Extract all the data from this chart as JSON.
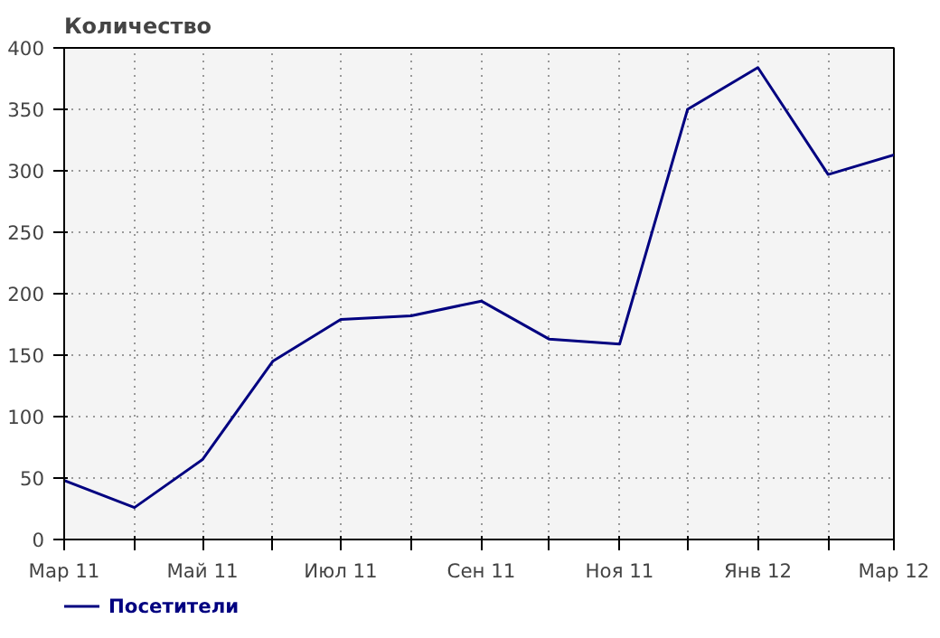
{
  "chart_data": {
    "type": "line",
    "title": "Количество",
    "x": [
      "2011-03",
      "2011-04",
      "2011-05",
      "2011-06",
      "2011-07",
      "2011-08",
      "2011-09",
      "2011-10",
      "2011-11",
      "2011-12",
      "2012-01",
      "2012-02",
      "2012-03"
    ],
    "series": [
      {
        "name": "Посетители",
        "color": "#000080",
        "values": [
          48,
          26,
          65,
          145,
          179,
          182,
          194,
          163,
          159,
          350,
          384,
          297,
          313
        ]
      }
    ],
    "xlim": [
      "2011-03",
      "2012-03"
    ],
    "xticks": [
      {
        "value": "2011-03",
        "label": "Мар 11"
      },
      {
        "value": "2011-04",
        "label": null
      },
      {
        "value": "2011-05",
        "label": "Май 11"
      },
      {
        "value": "2011-06",
        "label": null
      },
      {
        "value": "2011-07",
        "label": "Июл 11"
      },
      {
        "value": "2011-08",
        "label": null
      },
      {
        "value": "2011-09",
        "label": "Сен 11"
      },
      {
        "value": "2011-10",
        "label": null
      },
      {
        "value": "2011-11",
        "label": "Ноя 11"
      },
      {
        "value": "2011-12",
        "label": null
      },
      {
        "value": "2012-01",
        "label": "Янв 12"
      },
      {
        "value": "2012-02",
        "label": null
      },
      {
        "value": "2012-03",
        "label": "Мар 12"
      }
    ],
    "ylim": [
      0,
      400
    ],
    "yticks": [
      0,
      50,
      100,
      150,
      200,
      250,
      300,
      350,
      400
    ],
    "grid": true,
    "legend": "bottom",
    "marker": "none",
    "line_style": "solid"
  }
}
